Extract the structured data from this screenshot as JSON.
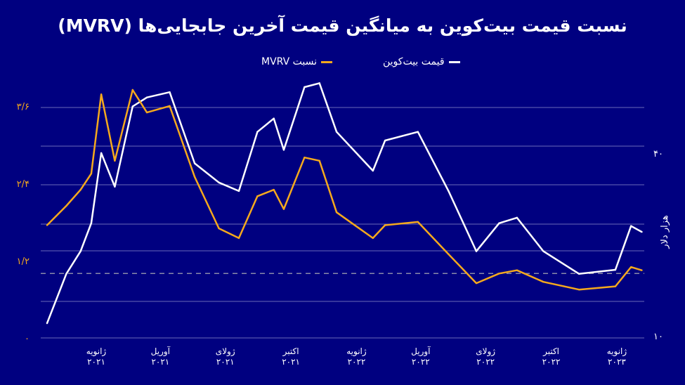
{
  "title": "نسبت قیمت بیت‌کوین به میانگین قیمت آخرین جابجایی‌ها (MVRV)",
  "chart_data": {
    "type": "line",
    "title": "نسبت قیمت بیت‌کوین به میانگین قیمت آخرین جابجایی‌ها (MVRV)",
    "x": [
      "2020-10-24",
      "2020-11-20",
      "2020-12-10",
      "2020-12-25",
      "2021-01-08",
      "2021-01-27",
      "2021-02-21",
      "2021-03-13",
      "2021-04-14",
      "2021-05-19",
      "2021-06-22",
      "2021-07-20",
      "2021-08-15",
      "2021-09-07",
      "2021-09-21",
      "2021-10-20",
      "2021-11-10",
      "2021-12-04",
      "2022-01-24",
      "2022-02-10",
      "2022-03-28",
      "2022-05-10",
      "2022-06-18",
      "2022-07-20",
      "2022-08-14",
      "2022-09-20",
      "2022-11-09",
      "2022-12-30",
      "2023-01-21",
      "2023-02-05"
    ],
    "series": [
      {
        "name": "قیمت بیت‌کوین",
        "axis": "right",
        "unit": "هزار دلار",
        "color": "#ffffff",
        "values": [
          11,
          16,
          19,
          23.5,
          40,
          31,
          57,
          61,
          63.5,
          37,
          32,
          30,
          47,
          52,
          41,
          66,
          68,
          47,
          35,
          44,
          47,
          30,
          19,
          23.5,
          24.5,
          19,
          16,
          16.5,
          23,
          22
        ]
      },
      {
        "name": "نسبت MVRV",
        "axis": "left",
        "color": "#f5a91d",
        "values": [
          1.75,
          2.05,
          2.3,
          2.55,
          3.78,
          2.75,
          3.85,
          3.5,
          3.6,
          2.5,
          1.7,
          1.55,
          2.2,
          2.3,
          2.0,
          2.8,
          2.75,
          1.95,
          1.55,
          1.75,
          1.8,
          1.3,
          0.85,
          1.0,
          1.05,
          0.87,
          0.75,
          0.8,
          1.1,
          1.05
        ]
      }
    ],
    "left_axis": {
      "ticks": [
        "۰",
        "۱/۲",
        "۲/۴",
        "۳/۶"
      ],
      "values": [
        0,
        1.2,
        2.4,
        3.6
      ],
      "ylim": [
        0,
        3.6
      ]
    },
    "right_axis": {
      "label": "هزار دلار",
      "ticks": [
        "۱۰",
        "۴۰"
      ],
      "values": [
        10,
        40
      ],
      "scale": "log"
    },
    "reference_line": {
      "value": 1,
      "style": "dashed"
    },
    "x_ticks": [
      {
        "date": "2021-01-01",
        "month": "ژانویه",
        "year": "۲۰۲۱"
      },
      {
        "date": "2021-04-01",
        "month": "آوریل",
        "year": "۲۰۲۱"
      },
      {
        "date": "2021-07-01",
        "month": "ژولای",
        "year": "۲۰۲۱"
      },
      {
        "date": "2021-10-01",
        "month": "اکتبر",
        "year": "۲۰۲۱"
      },
      {
        "date": "2022-01-01",
        "month": "ژانویه",
        "year": "۲۰۲۲"
      },
      {
        "date": "2022-04-01",
        "month": "آوریل",
        "year": "۲۰۲۲"
      },
      {
        "date": "2022-07-01",
        "month": "ژولای",
        "year": "۲۰۲۲"
      },
      {
        "date": "2022-10-01",
        "month": "اکتبر",
        "year": "۲۰۲۲"
      },
      {
        "date": "2023-01-01",
        "month": "ژانویه",
        "year": "۲۰۲۳"
      }
    ],
    "grid": true,
    "legend": "top"
  }
}
